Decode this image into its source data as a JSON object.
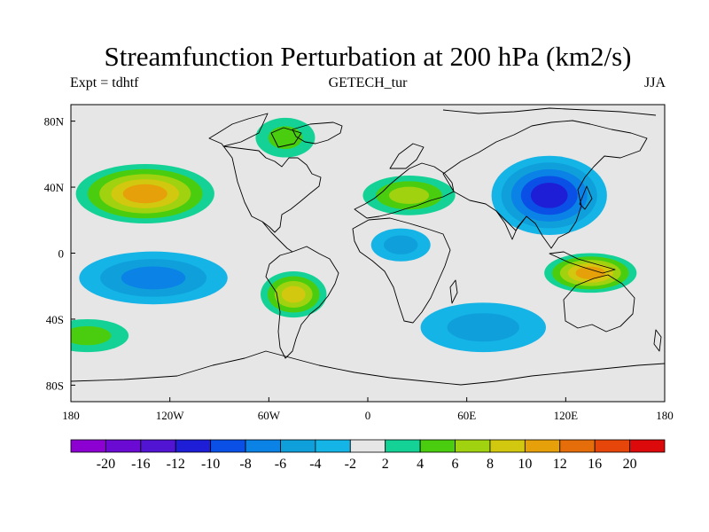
{
  "title": "Streamfunction Perturbation at 200 hPa (km2/s)",
  "subtitle_left": "Expt = tdhtf",
  "subtitle_center": "GETECH_tur",
  "subtitle_right": "JJA",
  "map": {
    "projection": "cylindrical equidistant",
    "lon_range": [
      -180,
      180
    ],
    "lat_range": [
      -90,
      90
    ],
    "background_color": "#e6e6e6",
    "coastline_color": "#000000",
    "x_ticks": [
      {
        "value": -180,
        "label": "180"
      },
      {
        "value": -120,
        "label": "120W"
      },
      {
        "value": -60,
        "label": "60W"
      },
      {
        "value": 0,
        "label": "0"
      },
      {
        "value": 60,
        "label": "60E"
      },
      {
        "value": 120,
        "label": "120E"
      },
      {
        "value": 180,
        "label": "180"
      }
    ],
    "y_ticks": [
      {
        "value": 80,
        "label": "80N"
      },
      {
        "value": 40,
        "label": "40N"
      },
      {
        "value": 0,
        "label": "0"
      },
      {
        "value": -40,
        "label": "40S"
      },
      {
        "value": -80,
        "label": "80S"
      }
    ]
  },
  "colorbar": {
    "levels": [
      "-20",
      "-16",
      "-12",
      "-10",
      "-8",
      "-6",
      "-4",
      "-2",
      "2",
      "4",
      "6",
      "8",
      "10",
      "12",
      "16",
      "20"
    ],
    "colors": [
      "#8c00d2",
      "#6a0ad2",
      "#5014d2",
      "#1e1ed7",
      "#0a50e6",
      "#0a82e6",
      "#0fa0dc",
      "#14b4e6",
      "#e6e6e6",
      "#14d296",
      "#4bcd0f",
      "#a0d20f",
      "#d2c80f",
      "#e6a00a",
      "#e66e0a",
      "#e6460a",
      "#dc0a0a"
    ]
  },
  "fields": [
    {
      "name": "north-pacific-positive-cell",
      "sign": "positive",
      "peak": 10,
      "center": [
        -135,
        36
      ],
      "radius": [
        42,
        18
      ]
    },
    {
      "name": "south-pacific-negative-cell",
      "sign": "negative",
      "peak": -6,
      "center": [
        -130,
        -15
      ],
      "radius": [
        45,
        16
      ]
    },
    {
      "name": "asian-negative-cell",
      "sign": "negative",
      "peak": -10,
      "center": [
        110,
        35
      ],
      "radius": [
        35,
        24
      ]
    },
    {
      "name": "australia-positive-cell",
      "sign": "positive",
      "peak": 10,
      "center": [
        135,
        -12
      ],
      "radius": [
        28,
        12
      ]
    },
    {
      "name": "south-america-positive-cell",
      "sign": "positive",
      "peak": 8,
      "center": [
        -45,
        -25
      ],
      "radius": [
        20,
        14
      ]
    },
    {
      "name": "indian-ocean-negative-cell",
      "sign": "negative",
      "peak": -4,
      "center": [
        70,
        -45
      ],
      "radius": [
        38,
        15
      ]
    },
    {
      "name": "mediterranean-positive-cell",
      "sign": "positive",
      "peak": 6,
      "center": [
        25,
        35
      ],
      "radius": [
        28,
        12
      ]
    },
    {
      "name": "africa-negative-cell",
      "sign": "negative",
      "peak": -4,
      "center": [
        20,
        5
      ],
      "radius": [
        18,
        10
      ]
    },
    {
      "name": "south-pacific-positive-band",
      "sign": "positive",
      "peak": 4,
      "center": [
        -170,
        -50
      ],
      "radius": [
        25,
        10
      ]
    },
    {
      "name": "greenland-positive-cell",
      "sign": "positive",
      "peak": 4,
      "center": [
        -50,
        70
      ],
      "radius": [
        18,
        12
      ]
    }
  ]
}
